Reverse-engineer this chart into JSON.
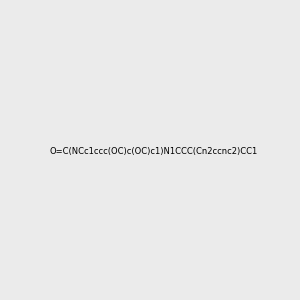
{
  "smiles": "O=C(NCc1ccc(OC)c(OC)c1)N1CCC(Cn2ccnc2)CC1",
  "img_size": [
    300,
    300
  ],
  "background_color": "#ebebeb",
  "title": "",
  "atom_colors": {
    "N": "#0000ff",
    "O": "#ff0000"
  }
}
